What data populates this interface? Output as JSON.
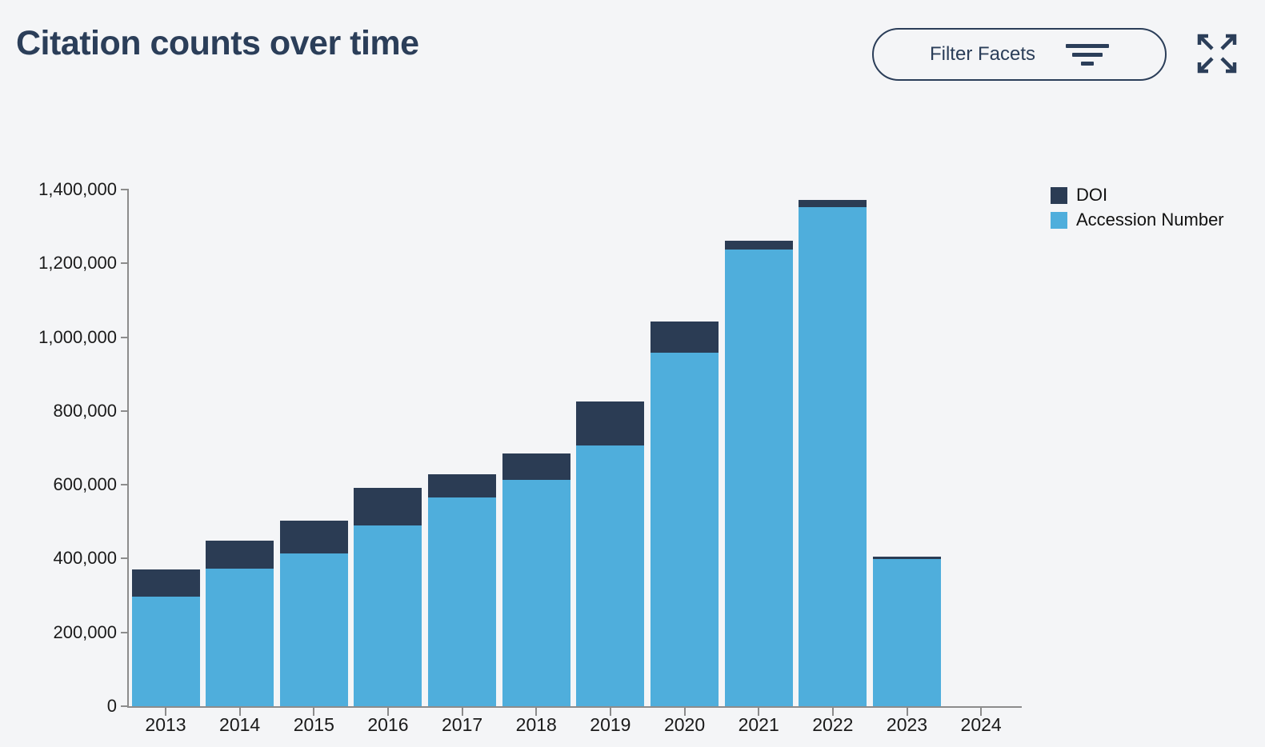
{
  "header": {
    "title": "Citation counts over time",
    "filter_button": {
      "label": "Filter Facets"
    }
  },
  "colors": {
    "accent_navy": "#2B3E59",
    "series_doi": "#2B3C54",
    "series_accession": "#4FAEDC",
    "axis_gray": "#8C8C8C",
    "background": "#F4F5F7"
  },
  "chart_data": {
    "type": "bar",
    "stacked": true,
    "title": "Citation counts over time",
    "xlabel": "",
    "ylabel": "",
    "grid": false,
    "legend_position": "right-top",
    "ylim": [
      0,
      1400000
    ],
    "ytick_step": 200000,
    "ytick_labels": [
      "0",
      "200,000",
      "400,000",
      "600,000",
      "800,000",
      "1,000,000",
      "1,200,000",
      "1,400,000"
    ],
    "categories": [
      "2013",
      "2014",
      "2015",
      "2016",
      "2017",
      "2018",
      "2019",
      "2020",
      "2021",
      "2022",
      "2023",
      "2024"
    ],
    "series": [
      {
        "name": "DOI",
        "color": "#2B3C54",
        "values": [
          74000,
          76000,
          89000,
          102000,
          63000,
          71000,
          119000,
          84000,
          24000,
          20000,
          6000,
          0
        ]
      },
      {
        "name": "Accession Number",
        "color": "#4FAEDC",
        "values": [
          297000,
          373000,
          414000,
          490000,
          566000,
          613000,
          706000,
          958000,
          1237000,
          1352000,
          399000,
          0
        ]
      }
    ]
  }
}
